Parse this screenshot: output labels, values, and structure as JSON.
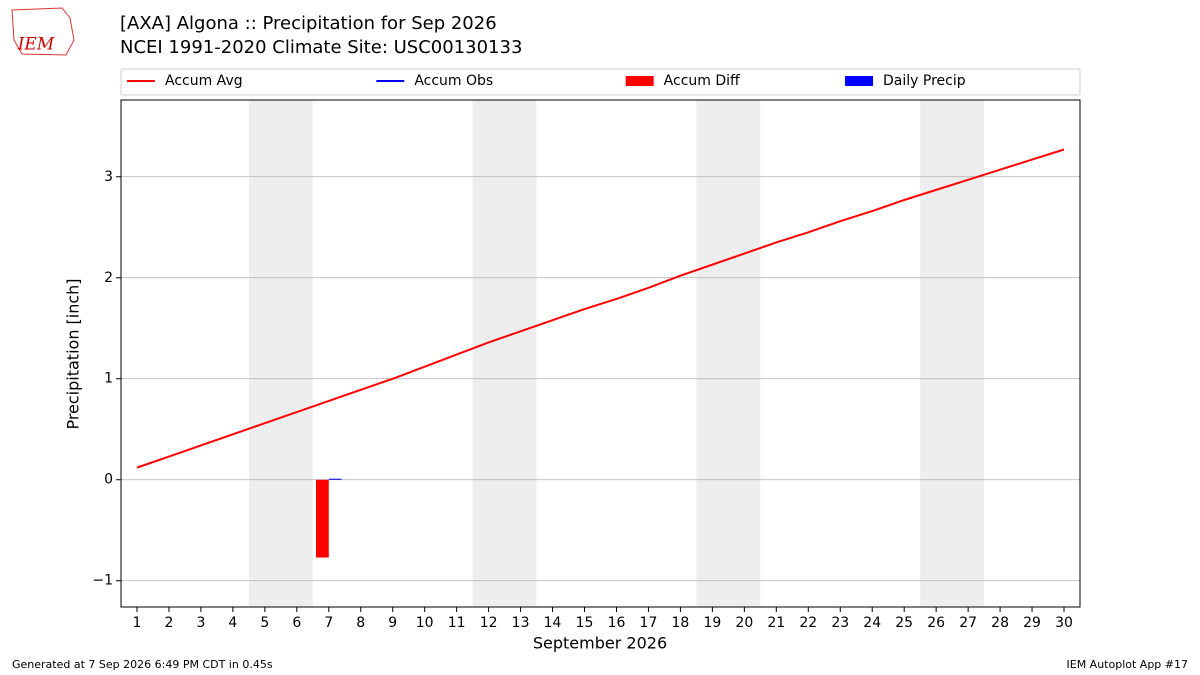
{
  "header": {
    "logo": "IEM"
  },
  "chart_data": {
    "type": "combo",
    "title": "[AXA] Algona :: Precipitation for Sep 2026",
    "subtitle": "NCEI 1991-2020 Climate Site: USC00130133",
    "xlabel": "September 2026",
    "ylabel": "Precipitation [inch]",
    "x": [
      1,
      2,
      3,
      4,
      5,
      6,
      7,
      8,
      9,
      10,
      11,
      12,
      13,
      14,
      15,
      16,
      17,
      18,
      19,
      20,
      21,
      22,
      23,
      24,
      25,
      26,
      27,
      28,
      29,
      30
    ],
    "xlim": [
      0.5,
      30.5
    ],
    "xticks": [
      1,
      2,
      3,
      4,
      5,
      6,
      7,
      8,
      9,
      10,
      11,
      12,
      13,
      14,
      15,
      16,
      17,
      18,
      19,
      20,
      21,
      22,
      23,
      24,
      25,
      26,
      27,
      28,
      29,
      30
    ],
    "ylim": [
      -1.26,
      3.76
    ],
    "yticks": [
      {
        "value": -1,
        "label": "−1"
      },
      0,
      1,
      2,
      3
    ],
    "grid": true,
    "weekend_spans": [
      [
        4.5,
        6.5
      ],
      [
        11.5,
        13.5
      ],
      [
        18.5,
        20.5
      ],
      [
        25.5,
        27.5
      ]
    ],
    "series": [
      {
        "name": "Accum Avg",
        "type": "line",
        "color": "#ff0000",
        "values": [
          0.12,
          0.23,
          0.34,
          0.45,
          0.56,
          0.67,
          0.78,
          0.89,
          1.0,
          1.12,
          1.24,
          1.36,
          1.47,
          1.58,
          1.69,
          1.79,
          1.9,
          2.02,
          2.13,
          2.24,
          2.35,
          2.45,
          2.56,
          2.66,
          2.77,
          2.87,
          2.97,
          3.07,
          3.17,
          3.27
        ]
      },
      {
        "name": "Accum Obs",
        "type": "line",
        "color": "#0000ff",
        "values": [
          null,
          null,
          null,
          null,
          null,
          null,
          0.01,
          null,
          null,
          null,
          null,
          null,
          null,
          null,
          null,
          null,
          null,
          null,
          null,
          null,
          null,
          null,
          null,
          null,
          null,
          null,
          null,
          null,
          null,
          null
        ]
      },
      {
        "name": "Accum Diff",
        "type": "bar",
        "color": "#ff0000",
        "values": [
          null,
          null,
          null,
          null,
          null,
          null,
          -0.77,
          null,
          null,
          null,
          null,
          null,
          null,
          null,
          null,
          null,
          null,
          null,
          null,
          null,
          null,
          null,
          null,
          null,
          null,
          null,
          null,
          null,
          null,
          null
        ]
      },
      {
        "name": "Daily Precip",
        "type": "bar",
        "color": "#0000ff",
        "values": [
          null,
          null,
          null,
          null,
          null,
          null,
          0.01,
          null,
          null,
          null,
          null,
          null,
          null,
          null,
          null,
          null,
          null,
          null,
          null,
          null,
          null,
          null,
          null,
          null,
          null,
          null,
          null,
          null,
          null,
          null
        ]
      }
    ]
  },
  "footer": {
    "left": "Generated at 7 Sep 2026 6:49 PM CDT in 0.45s",
    "right": "IEM Autoplot App #17"
  }
}
